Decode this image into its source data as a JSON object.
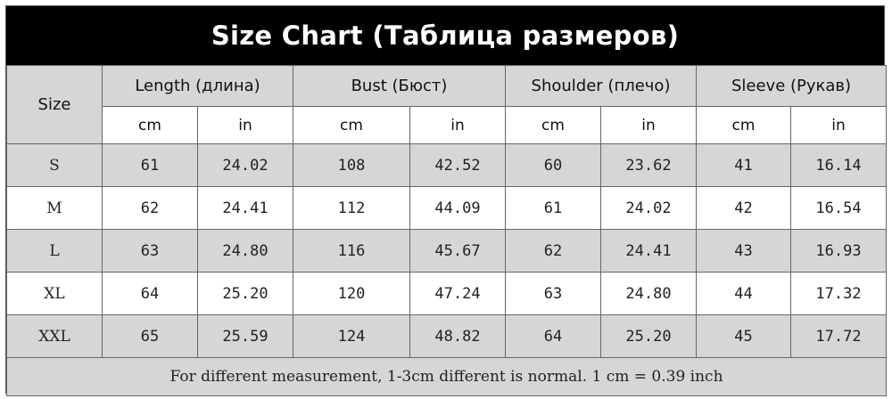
{
  "title": "Size Chart (Таблица размеров)",
  "size_label": "Size",
  "groups": [
    {
      "label": "Length (длина)",
      "units": [
        "cm",
        "in"
      ]
    },
    {
      "label": "Bust (Бюст)",
      "units": [
        "cm",
        "in"
      ]
    },
    {
      "label": "Shoulder (плечо)",
      "units": [
        "cm",
        "in"
      ]
    },
    {
      "label": "Sleeve (Рукав)",
      "units": [
        "cm",
        "in"
      ]
    }
  ],
  "rows": [
    {
      "size": "S",
      "values": [
        "61",
        "24.02",
        "108",
        "42.52",
        "60",
        "23.62",
        "41",
        "16.14"
      ]
    },
    {
      "size": "M",
      "values": [
        "62",
        "24.41",
        "112",
        "44.09",
        "61",
        "24.02",
        "42",
        "16.54"
      ]
    },
    {
      "size": "L",
      "values": [
        "63",
        "24.80",
        "116",
        "45.67",
        "62",
        "24.41",
        "43",
        "16.93"
      ]
    },
    {
      "size": "XL",
      "values": [
        "64",
        "25.20",
        "120",
        "47.24",
        "63",
        "24.80",
        "44",
        "17.32"
      ]
    },
    {
      "size": "XXL",
      "values": [
        "65",
        "25.59",
        "124",
        "48.82",
        "64",
        "25.20",
        "45",
        "17.72"
      ]
    }
  ],
  "footer": "For different measurement, 1-3cm different is normal. 1 cm = 0.39 inch",
  "colors": {
    "header_bg": "#000000",
    "header_text": "#ffffff",
    "shade": "#d6d6d6",
    "plain": "#ffffff"
  }
}
